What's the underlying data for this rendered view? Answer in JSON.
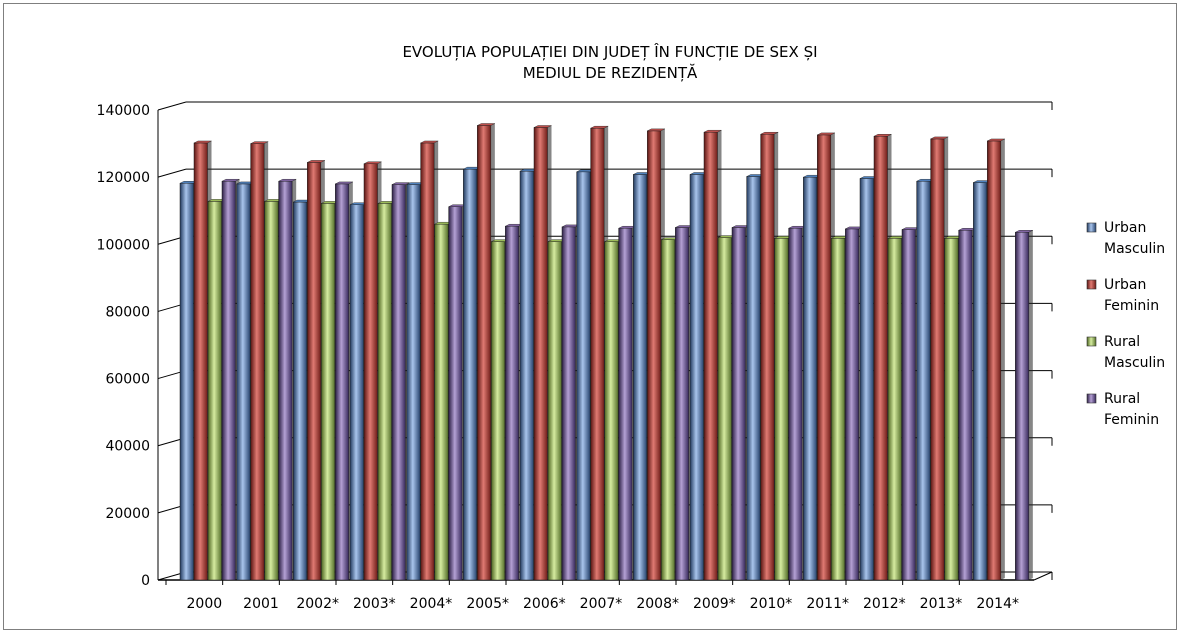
{
  "chart_data": {
    "type": "bar",
    "title_lines": [
      "EVOLUȚIA POPULAȚIEI DIN JUDEȚ ÎN FUNCȚIE DE SEX ȘI",
      "MEDIUL DE REZIDENȚĂ"
    ],
    "categories": [
      "2000",
      "2001",
      "2002*",
      "2003*",
      "2004*",
      "2005*",
      "2006*",
      "2007*",
      "2008*",
      "2009*",
      "2010*",
      "2011*",
      "2012*",
      "2013*",
      "2014*"
    ],
    "ylim": [
      0,
      140000
    ],
    "yticks": [
      "0",
      "20000",
      "40000",
      "60000",
      "80000",
      "100000",
      "120000",
      "140000"
    ],
    "grid": true,
    "legend_position": "right",
    "series": [
      {
        "name": "Urban Masculin",
        "legend_lines": [
          "Urban",
          "Masculin"
        ],
        "color": "#4f81bd",
        "values": [
          115800,
          115600,
          110200,
          109400,
          115400,
          120000,
          119400,
          119200,
          118400,
          118400,
          117800,
          117600,
          117200,
          116400,
          116000
        ]
      },
      {
        "name": "Urban Feminin",
        "legend_lines": [
          "Urban",
          "Feminin"
        ],
        "color": "#c0504d",
        "values": [
          127800,
          127600,
          122000,
          121600,
          127800,
          133000,
          132400,
          132200,
          131400,
          131000,
          130400,
          130200,
          129800,
          129000,
          128400
        ]
      },
      {
        "name": "Rural Masculin",
        "legend_lines": [
          "Rural",
          "Masculin"
        ],
        "color": "#9bbb59",
        "values": [
          110400,
          110400,
          109800,
          109800,
          103600,
          98400,
          98400,
          98400,
          99000,
          99600,
          99400,
          99400,
          99400,
          99400,
          null
        ]
      },
      {
        "name": "Rural Feminin",
        "legend_lines": [
          "Rural",
          "Feminin"
        ],
        "color": "#8064a2",
        "values": [
          116400,
          116400,
          115600,
          115400,
          108800,
          103000,
          102800,
          102400,
          102600,
          102600,
          102400,
          102200,
          102000,
          101800,
          101200
        ]
      }
    ]
  }
}
